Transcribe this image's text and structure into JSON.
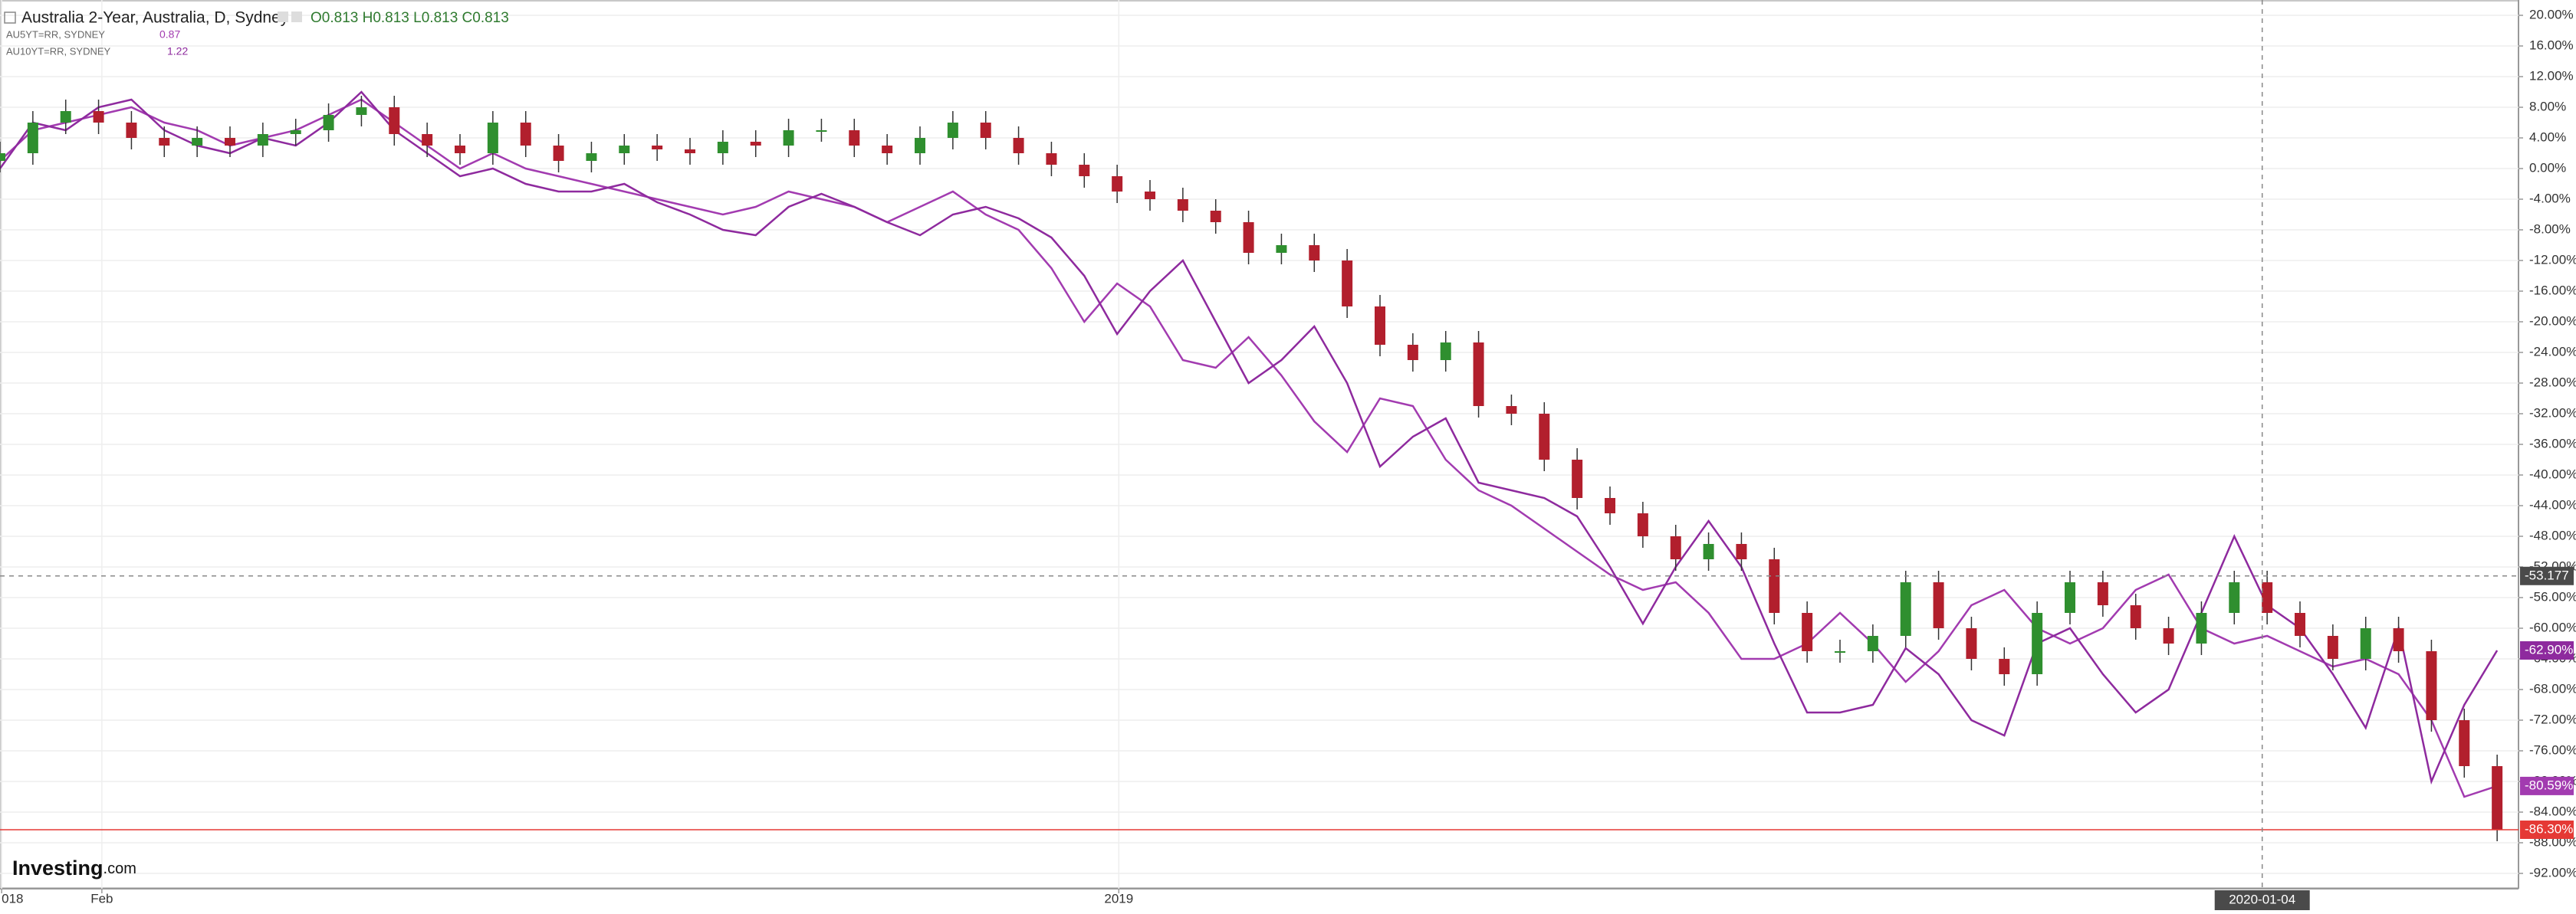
{
  "chart_data": {
    "type": "candlestick",
    "title": "Australia 2-Year, Australia, D, Sydney",
    "ohlc_text": "O0.813 H0.813 L0.813 C0.813",
    "logo": "Investing",
    "logo_suffix": ".com",
    "up_color": "#2f8f2f",
    "down_color": "#b21f2d",
    "grid": true,
    "ylim": [
      -94,
      22
    ],
    "xlim": [
      0,
      76.65
    ],
    "yticks": [
      {
        "value": 20,
        "label": "20.00%"
      },
      {
        "value": 16,
        "label": "16.00%"
      },
      {
        "value": 12,
        "label": "12.00%"
      },
      {
        "value": 8,
        "label": "8.00%"
      },
      {
        "value": 4,
        "label": "4.00%"
      },
      {
        "value": 0,
        "label": "0.00%"
      },
      {
        "value": -4,
        "label": "-4.00%"
      },
      {
        "value": -8,
        "label": "-8.00%"
      },
      {
        "value": -12,
        "label": "-12.00%"
      },
      {
        "value": -16,
        "label": "-16.00%"
      },
      {
        "value": -20,
        "label": "-20.00%"
      },
      {
        "value": -24,
        "label": "-24.00%"
      },
      {
        "value": -28,
        "label": "-28.00%"
      },
      {
        "value": -32,
        "label": "-32.00%"
      },
      {
        "value": -36,
        "label": "-36.00%"
      },
      {
        "value": -40,
        "label": "-40.00%"
      },
      {
        "value": -44,
        "label": "-44.00%"
      },
      {
        "value": -48,
        "label": "-48.00%"
      },
      {
        "value": -52,
        "label": "-52.00%"
      },
      {
        "value": -56,
        "label": "-56.00%"
      },
      {
        "value": -60,
        "label": "-60.00%"
      },
      {
        "value": -64,
        "label": "-64.00%"
      },
      {
        "value": -68,
        "label": "-68.00%"
      },
      {
        "value": -72,
        "label": "-72.00%"
      },
      {
        "value": -76,
        "label": "-76.00%"
      },
      {
        "value": -80,
        "label": "-80.00%"
      },
      {
        "value": -84,
        "label": "-84.00%"
      },
      {
        "value": -88,
        "label": "-88.00%"
      },
      {
        "value": -92,
        "label": "-92.00%"
      }
    ],
    "xticks": [
      {
        "value": 0.05,
        "label": "018"
      },
      {
        "value": 3.1,
        "label": "Feb"
      },
      {
        "value": 34.05,
        "label": "2019"
      }
    ],
    "crosshair": {
      "y": -53.177,
      "x": {
        "value": 68.85,
        "label": "2020-01-04"
      }
    },
    "candles": {
      "end_label": "-86.30%",
      "open": [
        1,
        2,
        6,
        7.5,
        6,
        4,
        3,
        4,
        3,
        4.5,
        5,
        7,
        8,
        4.5,
        3,
        2,
        6,
        3,
        1,
        2,
        3,
        2.5,
        2,
        3.5,
        3,
        5,
        5,
        3,
        2,
        4,
        6,
        4,
        2,
        0.5,
        -1,
        -3,
        -4,
        -5.5,
        -7,
        -11,
        -10,
        -12,
        -18,
        -23,
        -25,
        -22.7,
        -31,
        -32,
        -38,
        -43,
        -45,
        -48,
        -51,
        -49,
        -51,
        -58,
        -63,
        -63,
        -61,
        -54,
        -60,
        -64,
        -66,
        -58,
        -54,
        -57,
        -60,
        -62,
        -58,
        -54,
        -58,
        -61,
        -64,
        -60,
        -63,
        -72,
        -78
      ],
      "high": [
        3.5,
        7.5,
        9,
        9,
        7.5,
        5.5,
        5.5,
        5.5,
        6,
        6.5,
        8.5,
        9.5,
        9.5,
        6,
        4.5,
        7.5,
        7.5,
        4.5,
        3.5,
        4.5,
        4.5,
        4,
        5,
        5,
        6.5,
        6.5,
        6.5,
        4.5,
        5.5,
        7.5,
        7.5,
        5.5,
        3.5,
        2,
        0.5,
        -1.5,
        -2.5,
        -4,
        -5.5,
        -8.5,
        -8.5,
        -10.5,
        -16.5,
        -21.5,
        -21.2,
        -21.2,
        -29.5,
        -30.5,
        -36.5,
        -41.5,
        -43.5,
        -46.5,
        -47.5,
        -47.5,
        -49.5,
        -56.5,
        -61.5,
        -59.5,
        -52.5,
        -52.5,
        -58.5,
        -62.5,
        -56.5,
        -52.5,
        -52.5,
        -55.5,
        -58.5,
        -56.5,
        -52.5,
        -52.5,
        -56.5,
        -59.5,
        -58.5,
        -58.5,
        -61.5,
        -70.5,
        -76.5
      ],
      "low": [
        -0.5,
        0.5,
        4.5,
        4.5,
        2.5,
        1.5,
        1.5,
        1.5,
        1.5,
        3,
        3.5,
        5.5,
        3,
        1.5,
        0.5,
        0.5,
        1.5,
        -0.5,
        -0.5,
        0.5,
        1,
        0.5,
        0.5,
        1.5,
        1.5,
        3.5,
        1.5,
        0.5,
        0.5,
        2.5,
        2.5,
        0.5,
        -1,
        -2.5,
        -4.5,
        -5.5,
        -7,
        -8.5,
        -12.5,
        -12.5,
        -13.5,
        -19.5,
        -24.5,
        -26.5,
        -26.5,
        -32.5,
        -33.5,
        -39.5,
        -44.5,
        -46.5,
        -49.5,
        -52.5,
        -52.5,
        -52.5,
        -59.5,
        -64.5,
        -64.5,
        -64.5,
        -62.5,
        -61.5,
        -65.5,
        -67.5,
        -67.5,
        -59.5,
        -58.5,
        -61.5,
        -63.5,
        -63.5,
        -59.5,
        -59.5,
        -62.5,
        -65.5,
        -65.5,
        -64.5,
        -73.5,
        -79.5,
        -87.8
      ],
      "close": [
        2,
        6,
        7.5,
        6,
        4,
        3,
        4,
        3,
        4.5,
        5,
        7,
        8,
        4.5,
        3,
        2,
        6,
        3,
        1,
        2,
        3,
        2.5,
        2,
        3.5,
        3,
        5,
        5,
        3,
        2,
        4,
        6,
        4,
        2,
        0.5,
        -1,
        -3,
        -4,
        -5.5,
        -7,
        -11,
        -10,
        -12,
        -18,
        -23,
        -25,
        -22.7,
        -31,
        -32,
        -38,
        -43,
        -45,
        -48,
        -51,
        -49,
        -51,
        -58,
        -63,
        -63,
        -61,
        -54,
        -60,
        -64,
        -66,
        -58,
        -54,
        -57,
        -60,
        -62,
        -58,
        -54,
        -58,
        -61,
        -64,
        -60,
        -63,
        -72,
        -78,
        -86.3
      ]
    },
    "series": [
      {
        "name": "AU5YT=RR, SYDNEY",
        "last": "0.87",
        "color": "#a23bb0",
        "end_label": "-80.59%",
        "values": [
          1,
          5,
          6,
          7,
          8,
          6,
          5,
          3,
          4,
          5,
          7,
          9,
          6,
          3,
          0,
          2,
          0,
          -1,
          -2,
          -3,
          -4,
          -5,
          -6,
          -5,
          -3,
          -4,
          -5,
          -7,
          -5,
          -3,
          -6,
          -8,
          -13,
          -20,
          -15,
          -18,
          -25,
          -26,
          -22,
          -27,
          -33,
          -37,
          -30,
          -31,
          -38,
          -42,
          -44,
          -47,
          -50,
          -53,
          -55,
          -54,
          -58,
          -64,
          -64,
          -62,
          -58,
          -62,
          -67,
          -63,
          -57,
          -55,
          -60,
          -62,
          -60,
          -55,
          -53,
          -60,
          -62,
          -61,
          -63,
          -65,
          -64,
          -66,
          -72,
          -82,
          -80.59
        ]
      },
      {
        "name": "AU10YT=RR, SYDNEY",
        "last": "1.22",
        "color": "#8e2a9e",
        "end_label": "-62.90%",
        "values": [
          0,
          6,
          5,
          8,
          9,
          5,
          3,
          2,
          4,
          3,
          6,
          10,
          5,
          2,
          -1,
          0,
          -2,
          -3,
          -3,
          -2,
          -4.4,
          -6,
          -8,
          -8.7,
          -5,
          -3.3,
          -5,
          -7,
          -8.7,
          -6,
          -5,
          -6.5,
          -9,
          -14,
          -21.6,
          -16,
          -12,
          -20,
          -28,
          -25,
          -20.6,
          -28,
          -38.9,
          -35,
          -32.6,
          -41,
          -42,
          -43,
          -45.4,
          -52,
          -59.4,
          -52,
          -46,
          -52,
          -62,
          -71,
          -71,
          -70,
          -62.6,
          -66,
          -72,
          -74,
          -62,
          -60,
          -66,
          -71,
          -68,
          -58,
          -48,
          -57,
          -60,
          -66,
          -73,
          -60,
          -80,
          -70,
          -62.9
        ]
      }
    ]
  }
}
